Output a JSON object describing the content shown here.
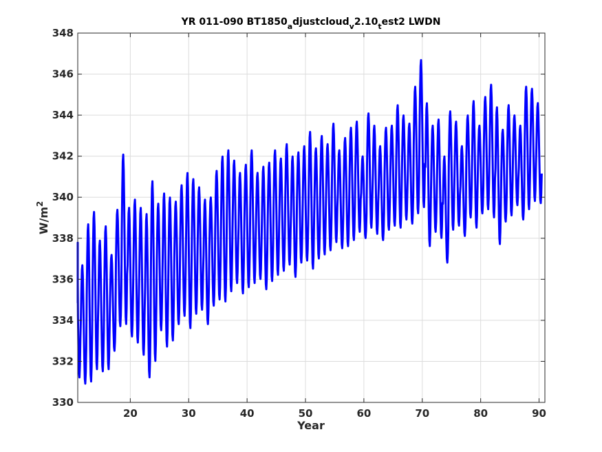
{
  "chart_data": {
    "type": "line",
    "title": {
      "prefix": "YR 011-090 BT1850",
      "sub1": "a",
      "mid1": "djustcloud",
      "sub2": "v",
      "mid2": "2.10",
      "sub3": "t",
      "suffix": "est2 LWDN"
    },
    "xlabel": "Year",
    "ylabel": {
      "base": "W/m",
      "sup": "2"
    },
    "xlim": [
      11,
      91
    ],
    "ylim": [
      330,
      348
    ],
    "xticks": [
      20,
      30,
      40,
      50,
      60,
      70,
      80,
      90
    ],
    "yticks": [
      330,
      332,
      334,
      336,
      338,
      340,
      342,
      344,
      346,
      348
    ],
    "grid": true,
    "line_color": "#0000ff",
    "series": [
      {
        "sampling": "annual cycle (12 monthly points per year)",
        "years": [
          11,
          12,
          13,
          14,
          15,
          16,
          17,
          18,
          19,
          20,
          21,
          22,
          23,
          24,
          25,
          26,
          27,
          28,
          29,
          30,
          31,
          32,
          33,
          34,
          35,
          36,
          37,
          38,
          39,
          40,
          41,
          42,
          43,
          44,
          45,
          46,
          47,
          48,
          49,
          50,
          51,
          52,
          53,
          54,
          55,
          56,
          57,
          58,
          59,
          60,
          61,
          62,
          63,
          64,
          65,
          66,
          67,
          68,
          69,
          70,
          71,
          72,
          73,
          74,
          75,
          76,
          77,
          78,
          79,
          80,
          81,
          82,
          83,
          84,
          85,
          86,
          87,
          88,
          89,
          90
        ],
        "annual_max": [
          337.8,
          336.7,
          338.7,
          339.3,
          337.9,
          338.6,
          337.2,
          339.4,
          342.1,
          339.5,
          339.9,
          339.5,
          339.2,
          340.8,
          339.7,
          340.2,
          340.0,
          339.8,
          340.6,
          341.2,
          340.9,
          340.5,
          339.9,
          340.0,
          341.3,
          342.0,
          342.3,
          341.8,
          341.2,
          341.6,
          342.3,
          341.2,
          341.5,
          341.7,
          342.3,
          341.9,
          342.6,
          342.0,
          342.2,
          342.5,
          343.2,
          342.4,
          343.0,
          342.6,
          343.6,
          342.3,
          342.9,
          343.4,
          343.7,
          342.0,
          344.1,
          343.5,
          342.5,
          343.4,
          343.5,
          344.5,
          344.0,
          343.6,
          345.4,
          346.7,
          344.6,
          343.5,
          343.8,
          342.0,
          344.2,
          343.7,
          342.5,
          344.0,
          344.7,
          343.5,
          344.9,
          345.5,
          344.4,
          343.3,
          344.5,
          344.0,
          343.5,
          345.4,
          345.3,
          344.6
        ],
        "annual_min": [
          331.2,
          330.9,
          331.0,
          331.6,
          331.5,
          331.6,
          332.5,
          333.7,
          333.8,
          333.2,
          332.9,
          332.3,
          331.2,
          332.0,
          333.5,
          332.7,
          333.0,
          333.8,
          334.2,
          333.6,
          334.3,
          334.5,
          333.8,
          334.7,
          335.0,
          334.9,
          335.4,
          335.8,
          335.3,
          335.6,
          335.8,
          336.0,
          335.5,
          335.9,
          336.2,
          336.4,
          336.7,
          336.1,
          336.8,
          336.9,
          336.5,
          337.0,
          337.2,
          337.4,
          337.8,
          337.5,
          337.6,
          337.9,
          338.3,
          338.0,
          338.5,
          338.2,
          337.9,
          338.4,
          338.6,
          338.5,
          338.9,
          338.7,
          339.2,
          339.5,
          337.6,
          338.3,
          338.0,
          336.8,
          338.4,
          338.6,
          338.1,
          339.0,
          338.5,
          339.2,
          339.4,
          339.0,
          337.7,
          338.8,
          339.1,
          339.6,
          338.9,
          339.4,
          339.8,
          339.7
        ]
      }
    ]
  }
}
